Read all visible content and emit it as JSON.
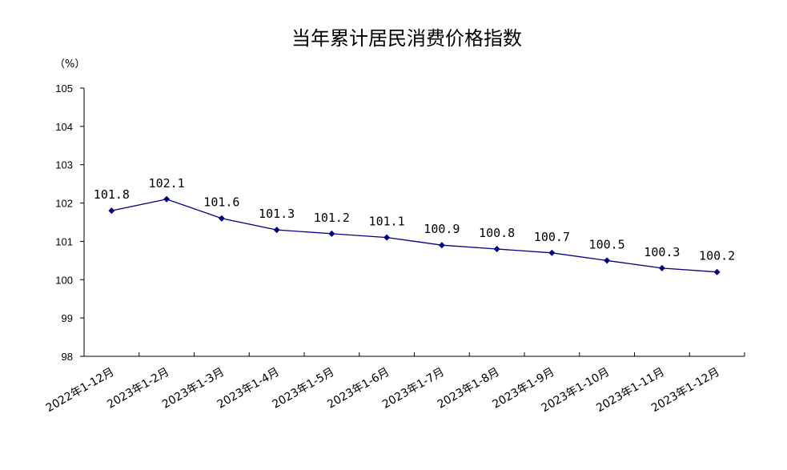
{
  "chart_data": {
    "type": "line",
    "title": "当年累计居民消费价格指数",
    "unit_label": "（%）",
    "categories": [
      "2022年1-12月",
      "2023年1-2月",
      "2023年1-3月",
      "2023年1-4月",
      "2023年1-5月",
      "2023年1-6月",
      "2023年1-7月",
      "2023年1-8月",
      "2023年1-9月",
      "2023年1-10月",
      "2023年1-11月",
      "2023年1-12月"
    ],
    "values": [
      101.8,
      102.1,
      101.6,
      101.3,
      101.2,
      101.1,
      100.9,
      100.8,
      100.7,
      100.5,
      100.3,
      100.2
    ],
    "data_labels": [
      "101.8",
      "102.1",
      "101.6",
      "101.3",
      "101.2",
      "101.1",
      "100.9",
      "100.8",
      "100.7",
      "100.5",
      "100.3",
      "100.2"
    ],
    "ylim": [
      98,
      105
    ],
    "yticks": [
      "98",
      "99",
      "100",
      "101",
      "102",
      "103",
      "104",
      "105"
    ],
    "grid": false,
    "series_color": "#000080"
  }
}
